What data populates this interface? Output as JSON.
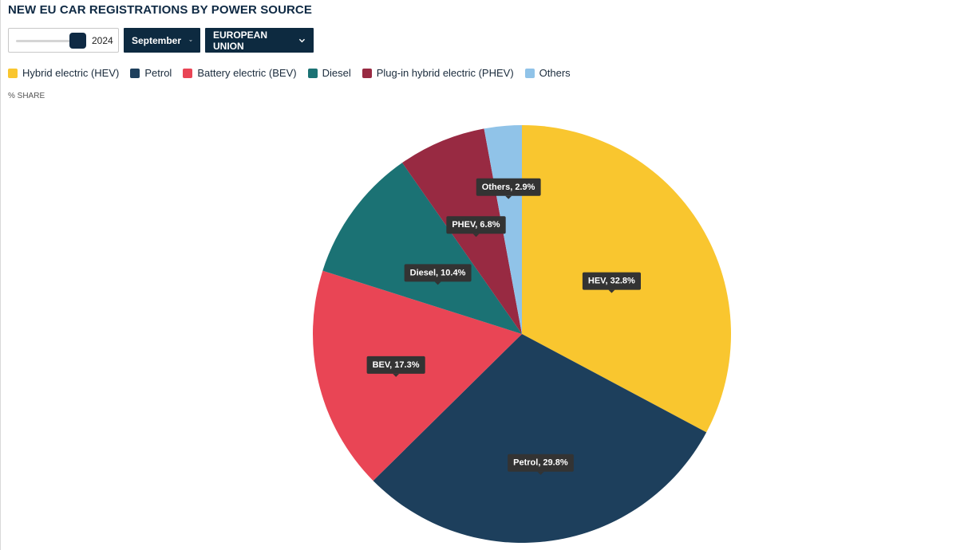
{
  "header": {
    "title": "NEW EU CAR REGISTRATIONS BY POWER SOURCE"
  },
  "controls": {
    "year_value": "2024",
    "month_label": "September",
    "region_label": "EUROPEAN UNION"
  },
  "legend": {
    "items": [
      {
        "label": "Hybrid electric (HEV)",
        "color": "#f9c62f"
      },
      {
        "label": "Petrol",
        "color": "#1d3f5c"
      },
      {
        "label": "Battery electric (BEV)",
        "color": "#e94555"
      },
      {
        "label": "Diesel",
        "color": "#1b7274"
      },
      {
        "label": "Plug-in hybrid electric (PHEV)",
        "color": "#982a42"
      },
      {
        "label": "Others",
        "color": "#90c3e8"
      }
    ]
  },
  "chart_data": {
    "type": "pie",
    "subtitle": "% SHARE",
    "categories": [
      "HEV",
      "Petrol",
      "BEV",
      "Diesel",
      "PHEV",
      "Others"
    ],
    "values": [
      32.8,
      29.8,
      17.3,
      10.4,
      6.8,
      2.9
    ],
    "data_labels": [
      "HEV, 32.8%",
      "Petrol, 29.8%",
      "BEV, 17.3%",
      "Diesel, 10.4%",
      "PHEV, 6.8%",
      "Others, 2.9%"
    ],
    "colors": [
      "#f9c62f",
      "#1d3f5c",
      "#e94555",
      "#1b7274",
      "#982a42",
      "#90c3e8"
    ]
  }
}
